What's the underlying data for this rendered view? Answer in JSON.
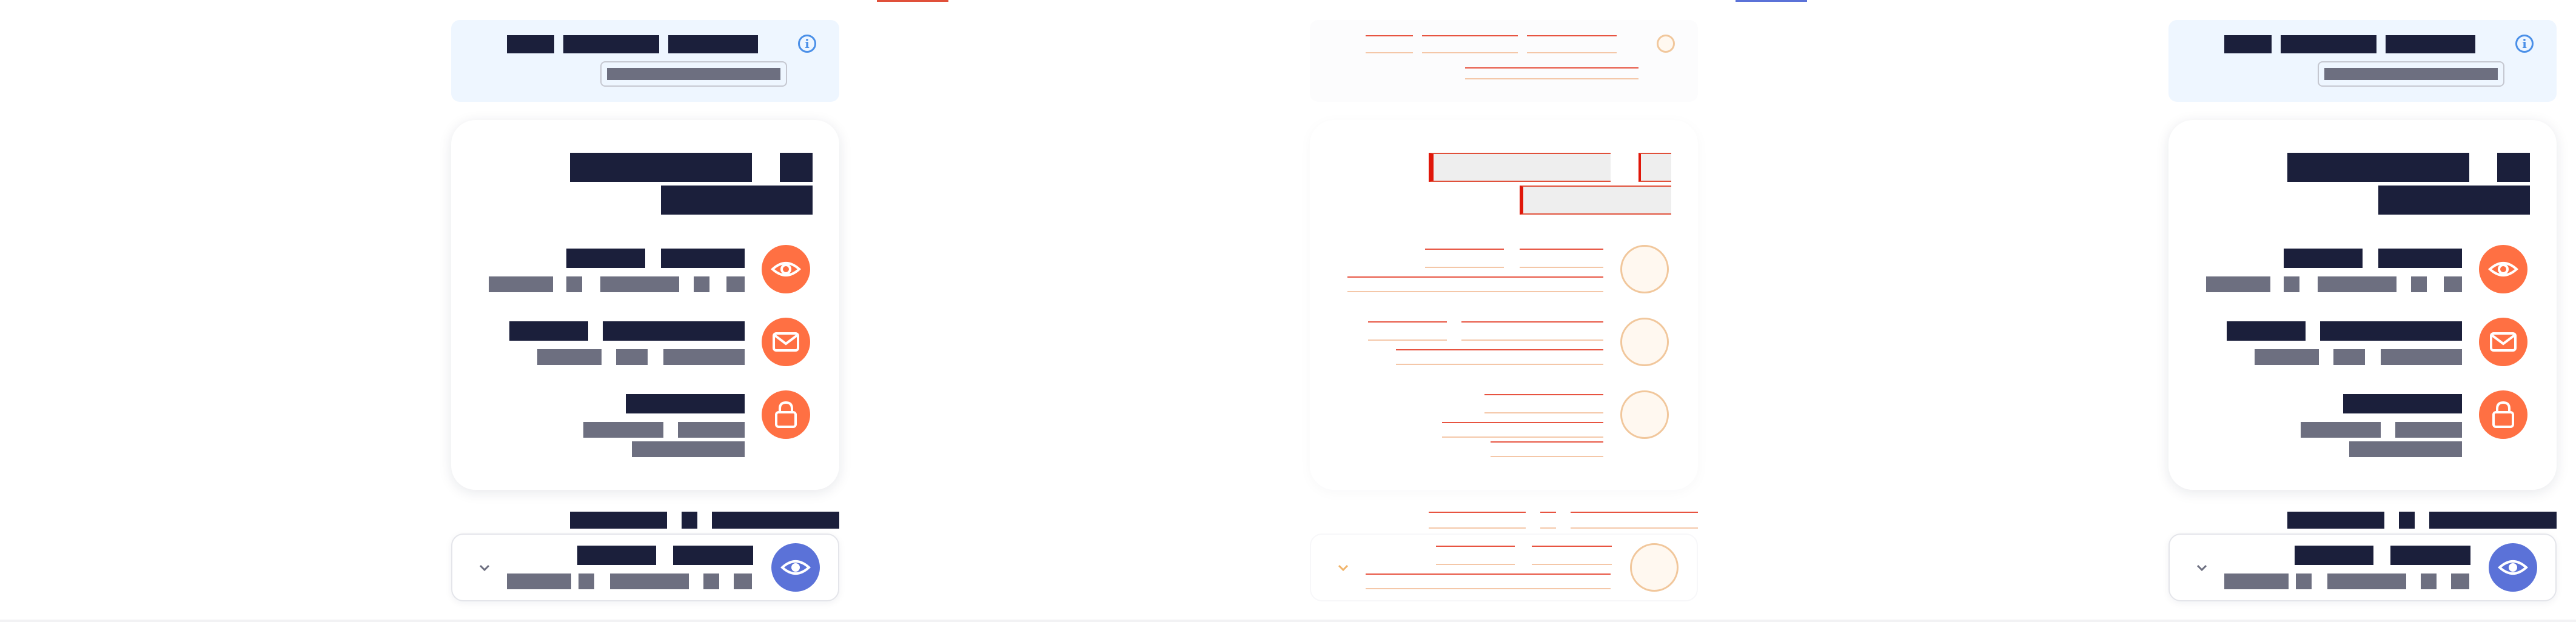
{
  "panels": [
    {
      "name": "rendered"
    },
    {
      "name": "diff-overlay"
    },
    {
      "name": "rendered-copy"
    }
  ],
  "info_banner": {
    "message": "",
    "link_label": "",
    "icon": "info-icon"
  },
  "privacy_card": {
    "heading": "",
    "items": [
      {
        "icon": "eye-icon",
        "title": "",
        "description": ""
      },
      {
        "icon": "mail-icon",
        "title": "",
        "description": ""
      },
      {
        "icon": "lock-icon",
        "title": "",
        "description": ""
      }
    ]
  },
  "section_heading": "",
  "collapsed_item": {
    "icon": "eye-icon",
    "toggle_icon": "chevron-down-icon",
    "title": "",
    "description": ""
  },
  "colors": {
    "text_dark": "#1b1f3b",
    "text_muted": "#6d6f80",
    "accent_orange": "#ff7043",
    "accent_blue": "#5b72d8",
    "info_blue": "#4a8fe8",
    "info_background": "#eef6ff",
    "diff_red": "#e0503a"
  }
}
